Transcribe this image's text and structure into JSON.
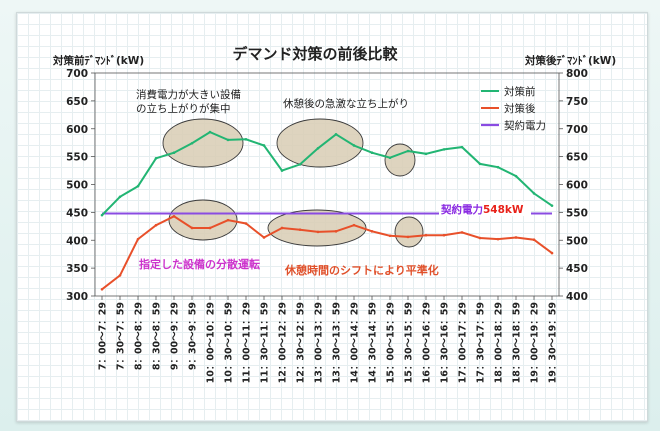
{
  "chart_data": {
    "type": "line",
    "title": "デマンド対策の前後比較",
    "ylabel_left": "対策前ﾃﾞﾏﾝﾄﾞ(kW)",
    "ylabel_right": "対策後ﾃﾞﾏﾝﾄﾞ(kW)",
    "ylim_left": [
      300,
      700
    ],
    "ylim_right": [
      400,
      800
    ],
    "yticks_left": [
      "300",
      "350",
      "400",
      "450",
      "500",
      "550",
      "600",
      "650",
      "700"
    ],
    "yticks_right": [
      "400",
      "450",
      "500",
      "550",
      "600",
      "650",
      "700",
      "750",
      "800"
    ],
    "categories": [
      "7：00～7：29",
      "7：30～7：59",
      "8：00～8：29",
      "8：30～8：59",
      "9：00～9：29",
      "9：30～9：59",
      "10：00～10：29",
      "10：30～10：59",
      "11：00～11：29",
      "11：30～11：59",
      "12：00～12：29",
      "12：30～12：59",
      "13：00～13：29",
      "13：30～13：59",
      "14：00～14：29",
      "14：30～14：59",
      "15：00～15：29",
      "15：30～15：59",
      "16：00～16：29",
      "16：30～16：59",
      "17：00～17：29",
      "17：30～17：59",
      "18：00～18：29",
      "18：30～18：59",
      "19：00～19：29",
      "19：30～19：59"
    ],
    "series": [
      {
        "name": "対策前",
        "color": "#22b573",
        "axis": "left",
        "values": [
          445,
          478,
          497,
          547,
          557,
          574,
          594,
          580,
          581,
          570,
          525,
          536,
          565,
          590,
          570,
          557,
          548,
          560,
          555,
          563,
          567,
          537,
          531,
          515,
          484,
          462
        ]
      },
      {
        "name": "対策後",
        "color": "#e8502a",
        "axis": "right",
        "values": [
          412,
          437,
          502,
          527,
          543,
          522,
          522,
          536,
          530,
          505,
          522,
          519,
          515,
          516,
          527,
          516,
          508,
          506,
          509,
          509,
          514,
          504,
          502,
          505,
          501,
          477
        ]
      },
      {
        "name": "契約電力",
        "color": "#8a4be2",
        "axis": "right",
        "values": [
          548,
          548,
          548,
          548,
          548,
          548,
          548,
          548,
          548,
          548,
          548,
          548,
          548,
          548,
          548,
          548,
          548,
          548,
          548,
          548,
          548,
          548,
          548,
          548,
          548,
          548
        ]
      }
    ],
    "legend_position": "top-right",
    "grid": false,
    "annotations": {
      "peak_label": "消費電力が大きい設備\nの立ち上がりが集中",
      "rise_label": "休憩後の急激な立ち上がり",
      "contract_label": "契約電力",
      "contract_value": "548kW",
      "spread_label": "指定した設備の分散運転",
      "shift_label": "休憩時間のシフトにより平準化"
    },
    "colors": {
      "contract_label": "#8a2be2",
      "contract_value": "#e8221a",
      "spread_label": "#cc33cc",
      "shift_label": "#e0502a",
      "highlight_fill": "#d8cdb4",
      "highlight_stroke": "#3b3b3b"
    }
  }
}
